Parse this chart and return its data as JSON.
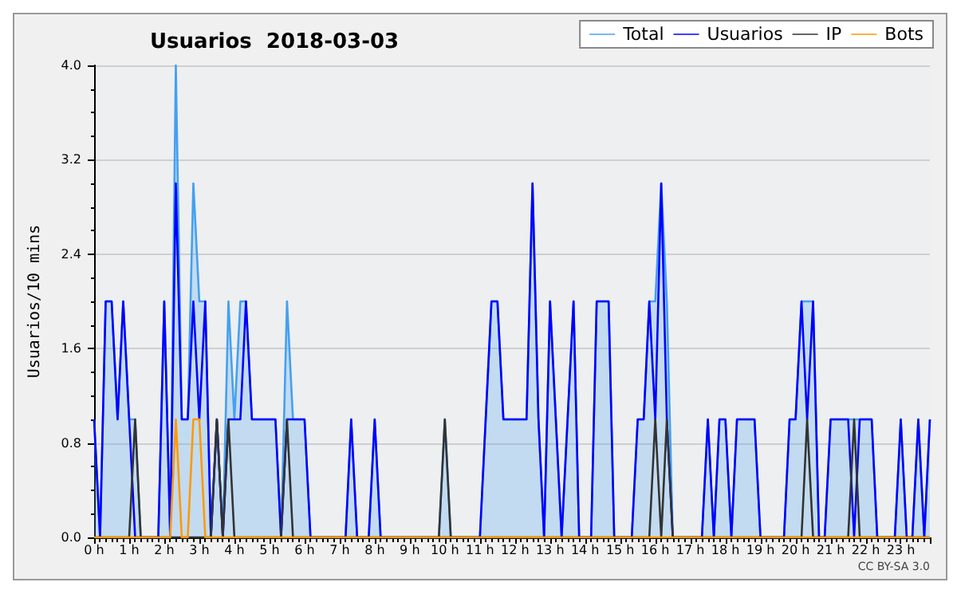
{
  "chart_data": {
    "type": "line",
    "title": "Usuarios  2018-03-03",
    "ylabel": "Usuarios/10 mins",
    "annotations": [
      "CC BY-SA 3.0"
    ],
    "xlim": [
      0,
      23.83
    ],
    "xticks": [
      {
        "value": 0,
        "label": "0 h"
      },
      {
        "value": 1,
        "label": "1 h"
      },
      {
        "value": 2,
        "label": "2 h"
      },
      {
        "value": 3,
        "label": "3 h"
      },
      {
        "value": 4,
        "label": "4 h"
      },
      {
        "value": 5,
        "label": "5 h"
      },
      {
        "value": 6,
        "label": "6 h"
      },
      {
        "value": 7,
        "label": "7 h"
      },
      {
        "value": 8,
        "label": "8 h"
      },
      {
        "value": 9,
        "label": "9 h"
      },
      {
        "value": 10,
        "label": "10 h"
      },
      {
        "value": 11,
        "label": "11 h"
      },
      {
        "value": 12,
        "label": "12 h"
      },
      {
        "value": 13,
        "label": "13 h"
      },
      {
        "value": 14,
        "label": "14 h"
      },
      {
        "value": 15,
        "label": "15 h"
      },
      {
        "value": 16,
        "label": "16 h"
      },
      {
        "value": 17,
        "label": "17 h"
      },
      {
        "value": 18,
        "label": "18 h"
      },
      {
        "value": 19,
        "label": "19 h"
      },
      {
        "value": 20,
        "label": "20 h"
      },
      {
        "value": 21,
        "label": "21 h"
      },
      {
        "value": 22,
        "label": "22 h"
      },
      {
        "value": 23,
        "label": "23 h"
      }
    ],
    "ylim": [
      0,
      4
    ],
    "yticks": [
      {
        "value": 0,
        "label": "0.0"
      },
      0.8,
      1.6,
      2.4,
      3.2,
      {
        "value": 4,
        "label": "4.0"
      }
    ],
    "grid": "y",
    "legend": "top right",
    "marker": "none",
    "line_style": "solid",
    "series": [
      {
        "name": "Total",
        "type": "area",
        "color": "#44a0f0",
        "x": [
          0,
          0.17,
          0.33,
          0.5,
          0.67,
          0.83,
          1,
          1.17,
          1.33,
          1.83,
          2,
          2.17,
          2.33,
          2.5,
          2.67,
          2.83,
          3,
          3.17,
          3.33,
          3.5,
          3.67,
          3.83,
          4,
          4.17,
          4.33,
          4.5,
          5.17,
          5.33,
          5.5,
          5.67,
          6,
          6.17,
          7.17,
          7.33,
          7.5,
          7.83,
          8,
          8.17,
          9.83,
          10,
          10.17,
          11,
          11.33,
          11.5,
          11.67,
          12.33,
          12.5,
          12.67,
          12.83,
          13,
          13.33,
          13.67,
          13.83,
          14.17,
          14.33,
          14.67,
          14.83,
          15.33,
          15.5,
          15.67,
          15.83,
          16,
          16.17,
          16.33,
          16.5,
          17.33,
          17.5,
          17.67,
          17.83,
          18,
          18.17,
          18.33,
          18.83,
          19,
          19.67,
          19.83,
          20,
          20.17,
          20.5,
          20.67,
          20.83,
          21,
          21.83,
          22.17,
          22.33,
          22.83,
          23,
          23.17,
          23.33,
          23.5,
          23.67,
          23.83
        ],
        "values": [
          1,
          0,
          2,
          2,
          1,
          2,
          1,
          1,
          0,
          0,
          2,
          0,
          4,
          1,
          1,
          3,
          2,
          2,
          0,
          1,
          0,
          2,
          1,
          2,
          2,
          1,
          1,
          0,
          2,
          1,
          1,
          0,
          0,
          1,
          0,
          0,
          1,
          0,
          0,
          1,
          0,
          0,
          2,
          2,
          1,
          1,
          3,
          1,
          0,
          2,
          0,
          2,
          0,
          0,
          2,
          2,
          0,
          0,
          1,
          1,
          2,
          2,
          3,
          2,
          0,
          0,
          1,
          0,
          1,
          1,
          0,
          1,
          1,
          0,
          0,
          1,
          1,
          2,
          2,
          0,
          0,
          1,
          1,
          1,
          0,
          0,
          1,
          0,
          0,
          1,
          0,
          1
        ]
      },
      {
        "name": "Usuarios",
        "color": "#0000ff",
        "x": [
          0,
          0.17,
          0.33,
          0.5,
          0.67,
          0.83,
          1,
          1.17,
          1.83,
          2,
          2.17,
          2.33,
          2.5,
          2.67,
          2.83,
          3,
          3.17,
          3.33,
          3.5,
          3.67,
          3.83,
          4.17,
          4.33,
          4.5,
          5.17,
          5.33,
          5.5,
          6,
          6.17,
          7.17,
          7.33,
          7.5,
          7.83,
          8,
          8.17,
          11,
          11.33,
          11.5,
          11.67,
          12.33,
          12.5,
          12.67,
          12.83,
          13,
          13.33,
          13.67,
          13.83,
          14.17,
          14.33,
          14.67,
          14.83,
          15.33,
          15.5,
          15.67,
          15.83,
          16,
          16.17,
          16.33,
          16.5,
          17.33,
          17.5,
          17.67,
          17.83,
          18,
          18.17,
          18.33,
          18.83,
          19,
          19.67,
          19.83,
          20,
          20.17,
          20.33,
          20.5,
          20.67,
          20.83,
          21,
          21.5,
          21.67,
          21.83,
          22.17,
          22.33,
          22.83,
          23,
          23.17,
          23.33,
          23.5,
          23.67,
          23.83
        ],
        "values": [
          1,
          0,
          2,
          2,
          1,
          2,
          1,
          0,
          0,
          2,
          0,
          3,
          1,
          1,
          2,
          1,
          2,
          0,
          1,
          0,
          1,
          1,
          2,
          1,
          1,
          0,
          1,
          1,
          0,
          0,
          1,
          0,
          0,
          1,
          0,
          0,
          2,
          2,
          1,
          1,
          3,
          1,
          0,
          2,
          0,
          2,
          0,
          0,
          2,
          2,
          0,
          0,
          1,
          1,
          2,
          1,
          3,
          1,
          0,
          0,
          1,
          0,
          1,
          1,
          0,
          1,
          1,
          0,
          0,
          1,
          1,
          2,
          1,
          2,
          0,
          0,
          1,
          1,
          0,
          1,
          1,
          0,
          0,
          1,
          0,
          0,
          1,
          0,
          1
        ]
      },
      {
        "name": "IP",
        "color": "#333333",
        "x": [
          0,
          1,
          1.17,
          1.33,
          3.33,
          3.5,
          3.67,
          3.83,
          4,
          5.33,
          5.5,
          5.67,
          9.83,
          10,
          10.17,
          15.83,
          16,
          16.17,
          16.33,
          16.5,
          20.17,
          20.33,
          20.5,
          21.5,
          21.67,
          21.83,
          23.83
        ],
        "values": [
          0,
          0,
          1,
          0,
          0,
          1,
          0,
          1,
          0,
          0,
          1,
          0,
          0,
          1,
          0,
          0,
          1,
          0,
          1,
          0,
          0,
          1,
          0,
          0,
          1,
          0,
          0
        ]
      },
      {
        "name": "Bots",
        "color": "#ff9900",
        "x": [
          0,
          2.17,
          2.33,
          2.5,
          2.67,
          2.83,
          3,
          3.17,
          23.83
        ],
        "values": [
          0,
          0,
          1,
          0,
          0,
          1,
          1,
          0,
          0
        ]
      }
    ]
  }
}
